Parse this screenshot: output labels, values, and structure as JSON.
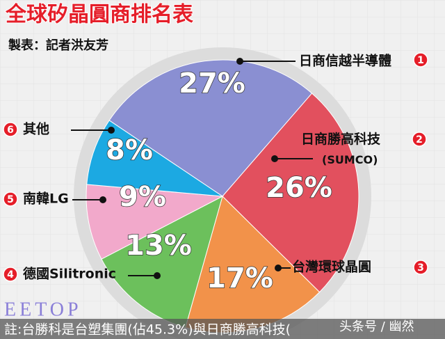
{
  "chart_data": {
    "type": "pie",
    "title": "全球矽晶圓商排名表",
    "subtitle": "製表：記者洪友芳",
    "categories": [
      "日商信越半導體",
      "日商勝高科技(SUMCO)",
      "台灣環球晶圓",
      "德國Silitronic",
      "南韓LG",
      "其他"
    ],
    "ranks": [
      1,
      2,
      3,
      4,
      5,
      6
    ],
    "values": [
      27,
      26,
      17,
      13,
      9,
      8
    ],
    "value_labels": [
      "27%",
      "26%",
      "17%",
      "13%",
      "9%",
      "8%"
    ],
    "colors": [
      "#8a8fd2",
      "#e2505e",
      "#f2924a",
      "#6cc05c",
      "#f2a9cb",
      "#1ca9e2"
    ],
    "note": "註:台勝科是台塑集團(佔45.3%)與日商勝高科技(",
    "watermark": "EETOP",
    "credit": "头条号 / 幽然"
  }
}
